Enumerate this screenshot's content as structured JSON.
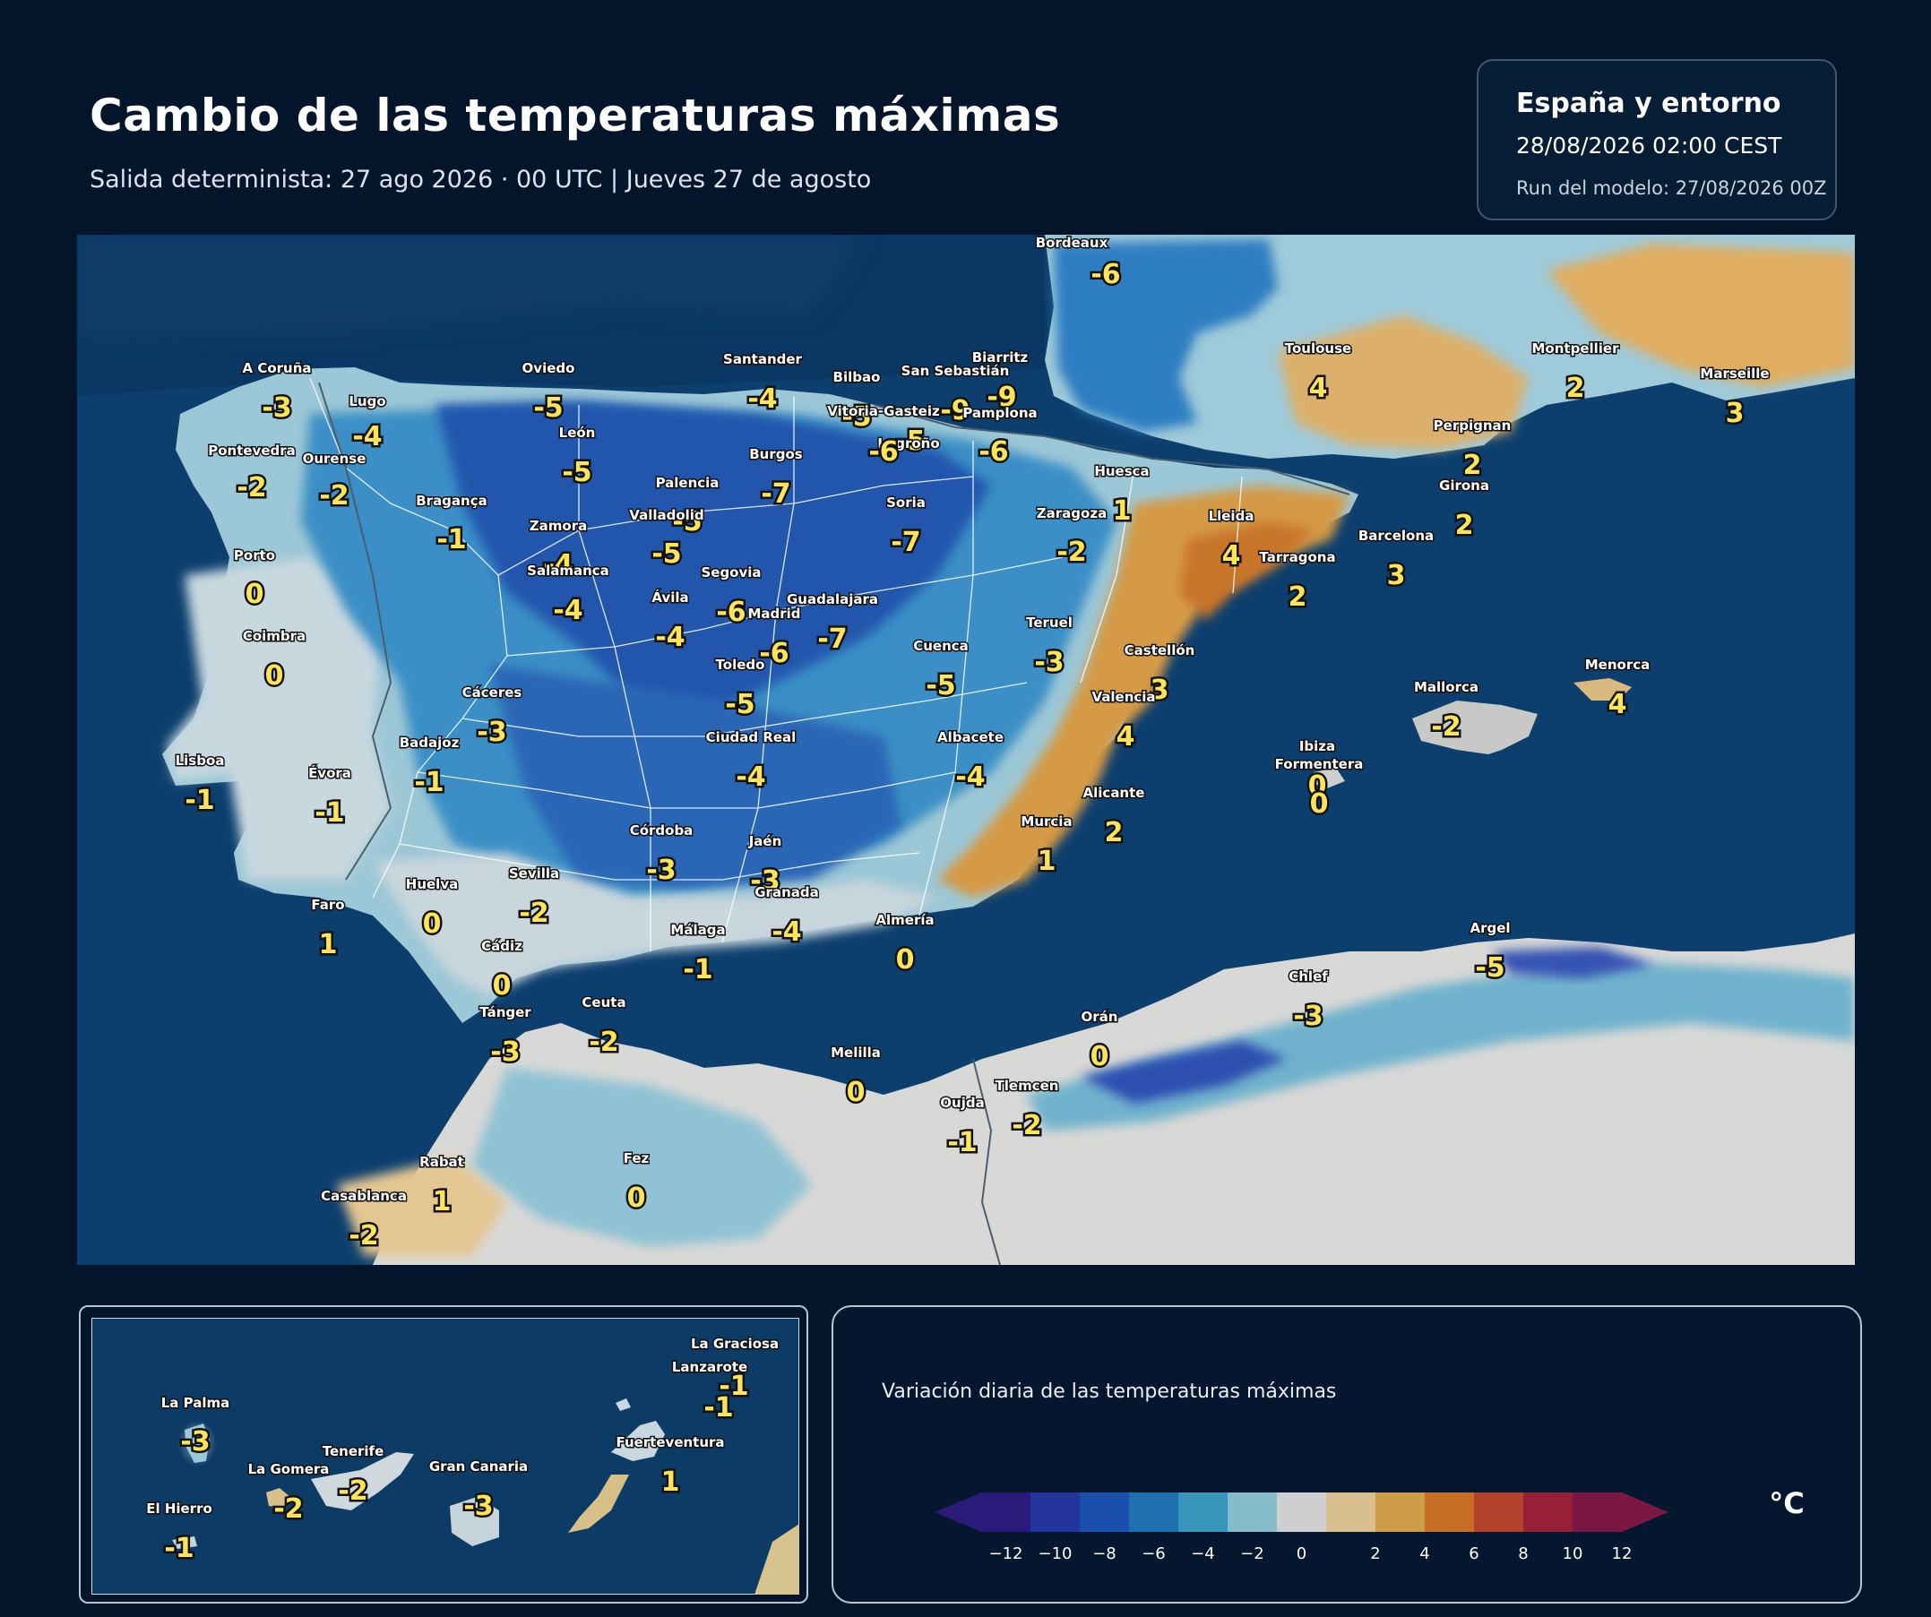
{
  "header": {
    "title": "Cambio de las temperaturas máximas",
    "subtitle": "Salida determinista: 27 ago 2026 · 00 UTC  |  Jueves 27 de agosto"
  },
  "info": {
    "region": "España y entorno",
    "valid": "28/08/2026  02:00 CEST",
    "run": "Run del modelo: 27/08/2026 00Z"
  },
  "stations": [
    {
      "name": "Bordeaux",
      "value": "-6"
    },
    {
      "name": "A Coruña",
      "value": "-3"
    },
    {
      "name": "Lugo",
      "value": "-4"
    },
    {
      "name": "Oviedo",
      "value": "-5"
    },
    {
      "name": "Santander",
      "value": "-4"
    },
    {
      "name": "Bilbao",
      "value": "-5"
    },
    {
      "name": "Biarritz",
      "value": "-9"
    },
    {
      "name": "San Sebastián",
      "value": "-9"
    },
    {
      "name": "Vitoria-Gasteiz",
      "value": "-5"
    },
    {
      "name": "Pamplona",
      "value": "-6"
    },
    {
      "name": "Logroño",
      "value": "-6"
    },
    {
      "name": "Toulouse",
      "value": "4"
    },
    {
      "name": "Montpellier",
      "value": "2"
    },
    {
      "name": "Marseille",
      "value": "3"
    },
    {
      "name": "Perpignan",
      "value": "2"
    },
    {
      "name": "Pontevedra",
      "value": "-2"
    },
    {
      "name": "Ourense",
      "value": "-2"
    },
    {
      "name": "León",
      "value": "-5"
    },
    {
      "name": "Burgos",
      "value": "-7"
    },
    {
      "name": "Palencia",
      "value": "-5"
    },
    {
      "name": "Soria",
      "value": "-7"
    },
    {
      "name": "Huesca",
      "value": "1"
    },
    {
      "name": "Girona",
      "value": "2"
    },
    {
      "name": "Bragança",
      "value": "-1"
    },
    {
      "name": "Valladolid",
      "value": "-5"
    },
    {
      "name": "Zamora",
      "value": "-4"
    },
    {
      "name": "Zaragoza",
      "value": "-2"
    },
    {
      "name": "Lleida",
      "value": "4"
    },
    {
      "name": "Barcelona",
      "value": "3"
    },
    {
      "name": "Tarragona",
      "value": "2"
    },
    {
      "name": "Porto",
      "value": "0"
    },
    {
      "name": "Salamanca",
      "value": "-4"
    },
    {
      "name": "Segovia",
      "value": "-6"
    },
    {
      "name": "Ávila",
      "value": "-4"
    },
    {
      "name": "Guadalajara",
      "value": "-7"
    },
    {
      "name": "Madrid",
      "value": "-6"
    },
    {
      "name": "Teruel",
      "value": "-3"
    },
    {
      "name": "Coimbra",
      "value": "0"
    },
    {
      "name": "Cuenca",
      "value": "-5"
    },
    {
      "name": "Toledo",
      "value": "-5"
    },
    {
      "name": "Castellón",
      "value": "3"
    },
    {
      "name": "Cáceres",
      "value": "-3"
    },
    {
      "name": "Valencia",
      "value": "4"
    },
    {
      "name": "Mallorca",
      "value": "-2"
    },
    {
      "name": "Menorca",
      "value": "4"
    },
    {
      "name": "Badajoz",
      "value": "-1"
    },
    {
      "name": "Ciudad Real",
      "value": "-4"
    },
    {
      "name": "Albacete",
      "value": "-4"
    },
    {
      "name": "Lisboa",
      "value": "-1"
    },
    {
      "name": "Évora",
      "value": "-1"
    },
    {
      "name": "Ibiza",
      "value": "0"
    },
    {
      "name": "Formentera",
      "value": "0"
    },
    {
      "name": "Alicante",
      "value": "2"
    },
    {
      "name": "Murcia",
      "value": "1"
    },
    {
      "name": "Córdoba",
      "value": "-3"
    },
    {
      "name": "Jaén",
      "value": "-3"
    },
    {
      "name": "Huelva",
      "value": "0"
    },
    {
      "name": "Sevilla",
      "value": "-2"
    },
    {
      "name": "Granada",
      "value": "-4"
    },
    {
      "name": "Faro",
      "value": "1"
    },
    {
      "name": "Almería",
      "value": "0"
    },
    {
      "name": "Málaga",
      "value": "-1"
    },
    {
      "name": "Cádiz",
      "value": "0"
    },
    {
      "name": "Argel",
      "value": "-5"
    },
    {
      "name": "Chlef",
      "value": "-3"
    },
    {
      "name": "Tánger",
      "value": "-3"
    },
    {
      "name": "Ceuta",
      "value": "-2"
    },
    {
      "name": "Orán",
      "value": "0"
    },
    {
      "name": "Melilla",
      "value": "0"
    },
    {
      "name": "Oujda",
      "value": "-1"
    },
    {
      "name": "Tlemcen",
      "value": "-2"
    },
    {
      "name": "Rabat",
      "value": "1"
    },
    {
      "name": "Fez",
      "value": "0"
    },
    {
      "name": "Casablanca",
      "value": "-2"
    }
  ],
  "canarias": [
    {
      "name": "La Graciosa",
      "value": "-1"
    },
    {
      "name": "Lanzarote",
      "value": "-1"
    },
    {
      "name": "La Palma",
      "value": "-3"
    },
    {
      "name": "Tenerife",
      "value": "-2"
    },
    {
      "name": "Fuerteventura",
      "value": "1"
    },
    {
      "name": "La Gomera",
      "value": "-2"
    },
    {
      "name": "Gran Canaria",
      "value": "-3"
    },
    {
      "name": "El Hierro",
      "value": "-1"
    }
  ],
  "legend": {
    "title": "Variación diaria de las temperaturas máximas",
    "unit": "°C",
    "ticks": [
      "−12",
      "−10",
      "−8",
      "−6",
      "−4",
      "−2",
      "0",
      "2",
      "4",
      "6",
      "8",
      "10",
      "12"
    ],
    "colors": [
      "#2a1b7a",
      "#24359d",
      "#1a4fad",
      "#1f6faf",
      "#3896bb",
      "#86bccb",
      "#cfcfcf",
      "#d8bf8f",
      "#cf9d47",
      "#c76e25",
      "#b3422c",
      "#962036",
      "#7a1742"
    ],
    "low_color": "#2a1b7a",
    "high_color": "#7a1742"
  }
}
